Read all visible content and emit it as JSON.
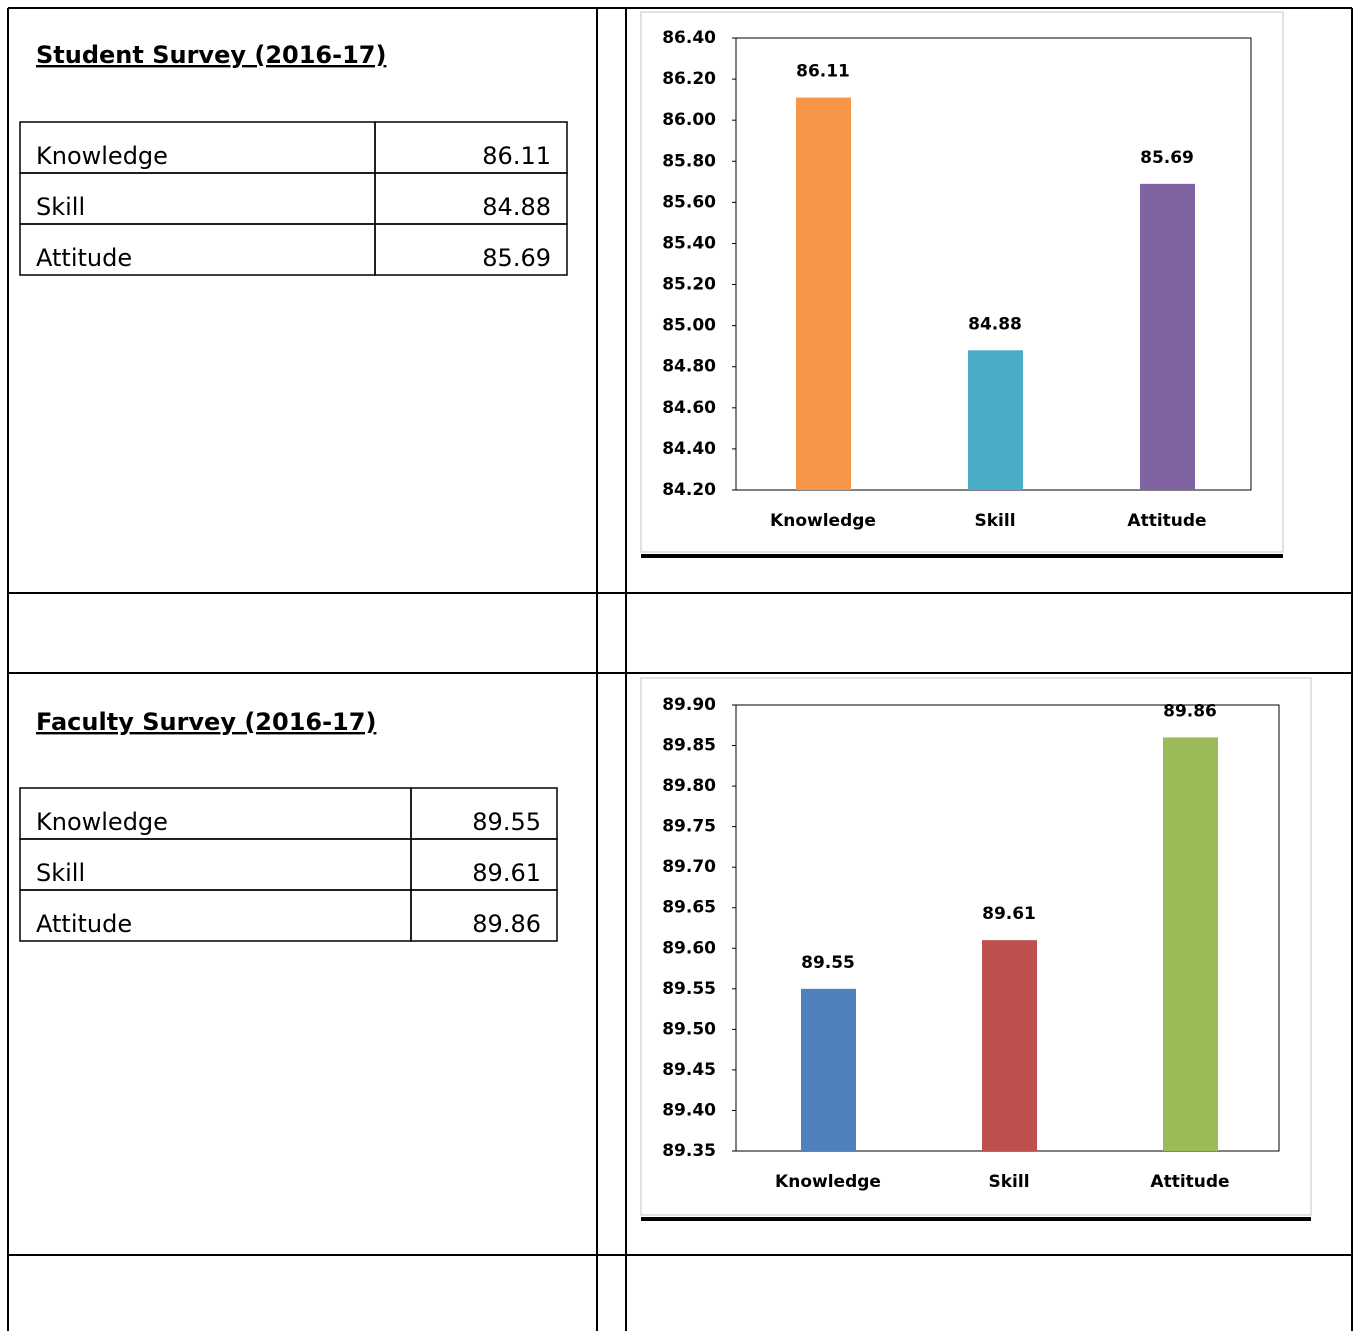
{
  "sections": [
    {
      "title": "Student Survey (2016-17)",
      "table": {
        "rows": [
          [
            "Knowledge",
            "86.11"
          ],
          [
            "Skill",
            "84.88"
          ],
          [
            "Attitude",
            "85.69"
          ]
        ]
      }
    },
    {
      "title": "Faculty Survey (2016-17)",
      "table": {
        "rows": [
          [
            "Knowledge",
            "89.55"
          ],
          [
            "Skill",
            "89.61"
          ],
          [
            "Attitude",
            "89.86"
          ]
        ]
      }
    }
  ],
  "chart_data": [
    {
      "type": "bar",
      "categories": [
        "Knowledge",
        "Skill",
        "Attitude"
      ],
      "values": [
        86.11,
        84.88,
        85.69
      ],
      "colors": [
        "#f79646",
        "#4bacc6",
        "#8064a2"
      ],
      "ylim": [
        84.2,
        86.4
      ],
      "yticks": [
        {
          "value": 84.2,
          "label": "84.20"
        },
        {
          "value": 84.4,
          "label": "84.40"
        },
        {
          "value": 84.6,
          "label": "84.60"
        },
        {
          "value": 84.8,
          "label": "84.80"
        },
        {
          "value": 85.0,
          "label": "85.00"
        },
        {
          "value": 85.2,
          "label": "85.20"
        },
        {
          "value": 85.4,
          "label": "85.40"
        },
        {
          "value": 85.6,
          "label": "85.60"
        },
        {
          "value": 85.8,
          "label": "85.80"
        },
        {
          "value": 86.0,
          "label": "86.00"
        },
        {
          "value": 86.2,
          "label": "86.20"
        },
        {
          "value": 86.4,
          "label": "86.40"
        }
      ]
    },
    {
      "type": "bar",
      "categories": [
        "Knowledge",
        "Skill",
        "Attitude"
      ],
      "values": [
        89.55,
        89.61,
        89.86
      ],
      "colors": [
        "#4f81bd",
        "#c0504d",
        "#9bbb59"
      ],
      "ylim": [
        89.35,
        89.9
      ],
      "yticks": [
        {
          "value": 89.35,
          "label": "89.35"
        },
        {
          "value": 89.4,
          "label": "89.40"
        },
        {
          "value": 89.45,
          "label": "89.45"
        },
        {
          "value": 89.5,
          "label": "89.50"
        },
        {
          "value": 89.55,
          "label": "89.55"
        },
        {
          "value": 89.6,
          "label": "89.60"
        },
        {
          "value": 89.65,
          "label": "89.65"
        },
        {
          "value": 89.7,
          "label": "89.70"
        },
        {
          "value": 89.75,
          "label": "89.75"
        },
        {
          "value": 89.8,
          "label": "89.80"
        },
        {
          "value": 89.85,
          "label": "89.85"
        },
        {
          "value": 89.9,
          "label": "89.90"
        }
      ]
    }
  ]
}
